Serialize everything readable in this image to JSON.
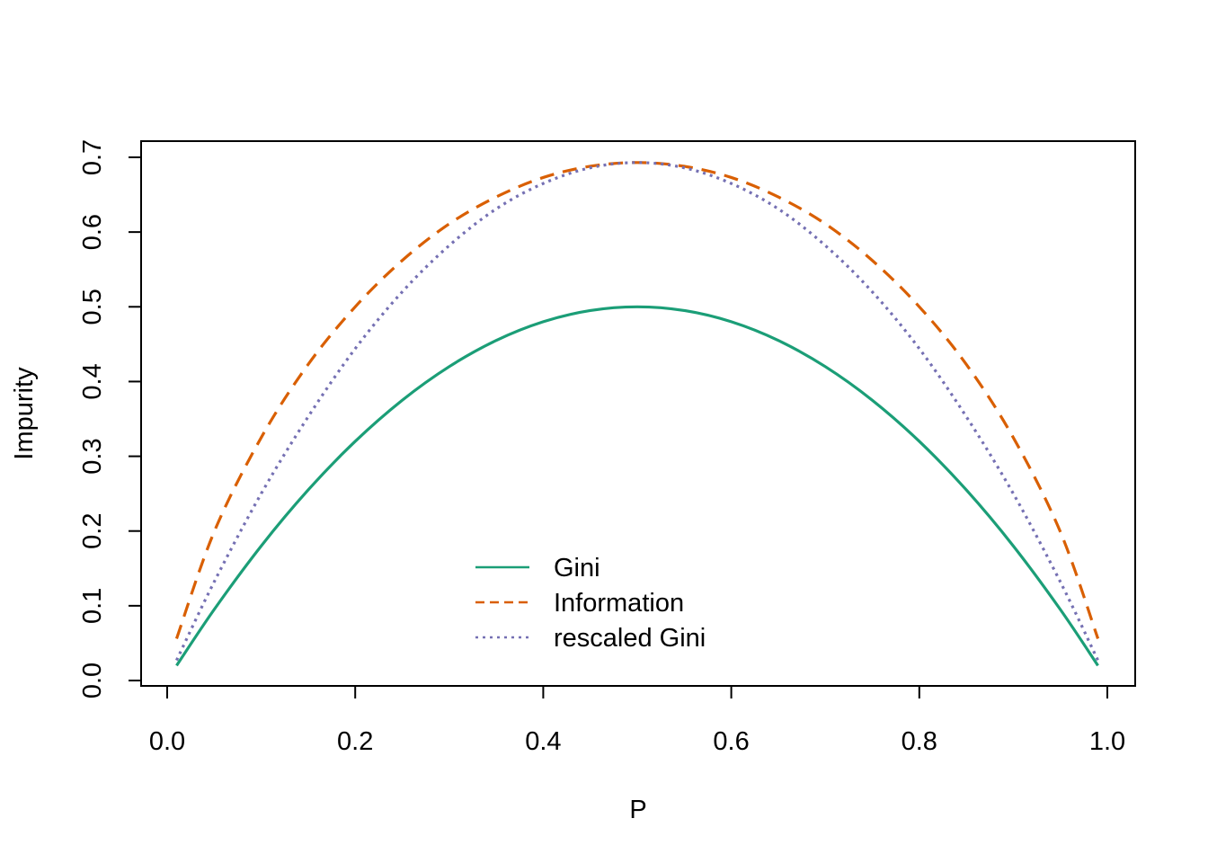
{
  "chart_data": {
    "type": "line",
    "title": "",
    "xlabel": "P",
    "ylabel": "Impurity",
    "xlim": [
      0,
      1
    ],
    "ylim": [
      0,
      0.7
    ],
    "x_ticks": [
      "0.0",
      "0.2",
      "0.4",
      "0.6",
      "0.8",
      "1.0"
    ],
    "y_ticks": [
      "0.0",
      "0.1",
      "0.2",
      "0.3",
      "0.4",
      "0.5",
      "0.6",
      "0.7"
    ],
    "grid": false,
    "legend_position": "bottom-center",
    "x": [
      0.01,
      0.05,
      0.1,
      0.15,
      0.2,
      0.25,
      0.3,
      0.35,
      0.4,
      0.45,
      0.5,
      0.55,
      0.6,
      0.65,
      0.7,
      0.75,
      0.8,
      0.85,
      0.9,
      0.95,
      0.99
    ],
    "series": [
      {
        "name": "Gini",
        "color": "#1b9e77",
        "line_style": "solid",
        "values": [
          0.02,
          0.095,
          0.18,
          0.255,
          0.32,
          0.375,
          0.42,
          0.455,
          0.48,
          0.495,
          0.5,
          0.495,
          0.48,
          0.455,
          0.42,
          0.375,
          0.32,
          0.255,
          0.18,
          0.095,
          0.02
        ]
      },
      {
        "name": "Information",
        "color": "#d95f02",
        "line_style": "dashed",
        "values": [
          0.056,
          0.199,
          0.325,
          0.423,
          0.5,
          0.562,
          0.611,
          0.647,
          0.673,
          0.688,
          0.693,
          0.688,
          0.673,
          0.647,
          0.611,
          0.562,
          0.5,
          0.423,
          0.325,
          0.199,
          0.056
        ]
      },
      {
        "name": "rescaled Gini",
        "color": "#7570b3",
        "line_style": "dotted",
        "values": [
          0.027,
          0.132,
          0.25,
          0.353,
          0.444,
          0.52,
          0.582,
          0.631,
          0.665,
          0.686,
          0.693,
          0.686,
          0.665,
          0.631,
          0.582,
          0.52,
          0.444,
          0.353,
          0.25,
          0.132,
          0.027
        ]
      }
    ]
  }
}
